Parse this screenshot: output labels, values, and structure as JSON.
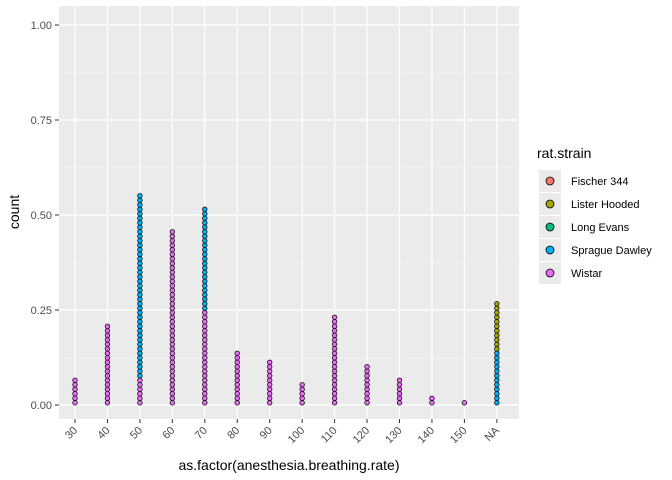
{
  "chart_data": {
    "type": "dotplot",
    "xlabel": "as.factor(anesthesia.breathing.rate)",
    "ylabel": "count",
    "categories": [
      "30",
      "40",
      "50",
      "60",
      "70",
      "80",
      "90",
      "100",
      "110",
      "120",
      "130",
      "140",
      "150",
      "NA"
    ],
    "yticks": [
      "0.00",
      "0.25",
      "0.50",
      "0.75",
      "1.00"
    ],
    "ylim": [
      0,
      1.0
    ],
    "legend": {
      "title": "rat.strain",
      "placement": "right",
      "entries": [
        {
          "name": "Fischer 344",
          "color": "#F8766D"
        },
        {
          "name": "Lister Hooded",
          "color": "#A3A500"
        },
        {
          "name": "Long Evans",
          "color": "#00BF7D"
        },
        {
          "name": "Sprague Dawley",
          "color": "#00B0F6"
        },
        {
          "name": "Wistar",
          "color": "#E76BF3"
        }
      ]
    },
    "stacks": [
      {
        "category": "30",
        "segments": [
          {
            "strain": "Wistar",
            "count": 6
          }
        ]
      },
      {
        "category": "40",
        "segments": [
          {
            "strain": "Wistar",
            "count": 18
          }
        ]
      },
      {
        "category": "50",
        "segments": [
          {
            "strain": "Wistar",
            "count": 6
          },
          {
            "strain": "Sprague Dawley",
            "count": 41
          }
        ]
      },
      {
        "category": "60",
        "segments": [
          {
            "strain": "Wistar",
            "count": 39
          }
        ]
      },
      {
        "category": "70",
        "segments": [
          {
            "strain": "Wistar",
            "count": 21
          },
          {
            "strain": "Sprague Dawley",
            "count": 23
          }
        ]
      },
      {
        "category": "80",
        "segments": [
          {
            "strain": "Wistar",
            "count": 12
          }
        ]
      },
      {
        "category": "90",
        "segments": [
          {
            "strain": "Wistar",
            "count": 10
          }
        ]
      },
      {
        "category": "100",
        "segments": [
          {
            "strain": "Wistar",
            "count": 5
          }
        ]
      },
      {
        "category": "110",
        "segments": [
          {
            "strain": "Wistar",
            "count": 20
          }
        ]
      },
      {
        "category": "120",
        "segments": [
          {
            "strain": "Wistar",
            "count": 9
          }
        ]
      },
      {
        "category": "130",
        "segments": [
          {
            "strain": "Wistar",
            "count": 6
          }
        ]
      },
      {
        "category": "140",
        "segments": [
          {
            "strain": "Wistar",
            "count": 2
          }
        ]
      },
      {
        "category": "150",
        "segments": [
          {
            "strain": "Wistar",
            "count": 1
          }
        ]
      },
      {
        "category": "NA",
        "segments": [
          {
            "strain": "Sprague Dawley",
            "count": 12
          },
          {
            "strain": "Lister Hooded",
            "count": 11
          }
        ]
      }
    ]
  }
}
